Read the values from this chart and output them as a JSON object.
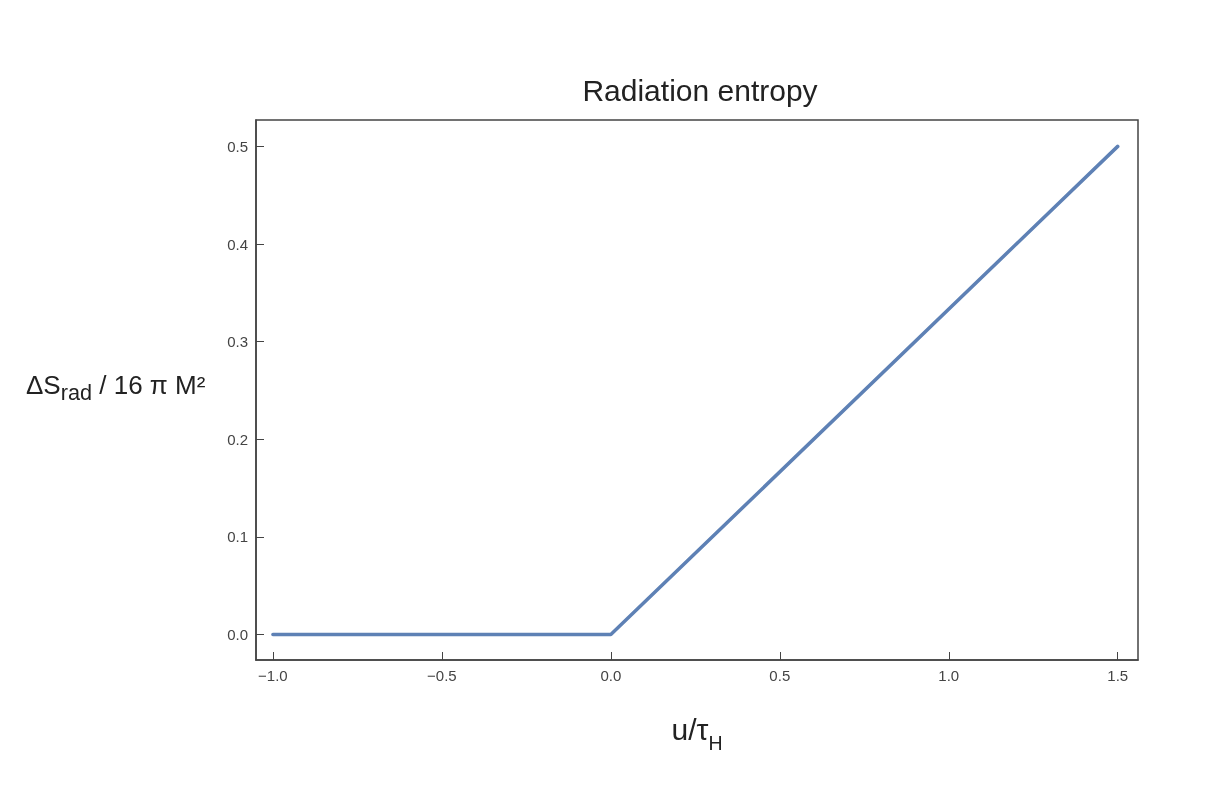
{
  "chart_data": {
    "type": "line",
    "title": "Radiation entropy",
    "xlabel": "u/τ$_{H}$",
    "ylabel": "ΔS$_{rad}$ / 16 π M²",
    "x": [
      -1,
      0,
      1.5
    ],
    "series": [
      {
        "color": "#5e81b5",
        "values": [
          0,
          0,
          0.5
        ]
      }
    ],
    "xlim": [
      -1.05,
      1.56
    ],
    "xticks": [
      {
        "value": -1,
        "label": "−1.0"
      },
      {
        "value": -0.5,
        "label": "−0.5"
      },
      {
        "value": 0,
        "label": "0.0"
      },
      {
        "value": 0.5,
        "label": "0.5"
      },
      {
        "value": 1,
        "label": "1.0"
      },
      {
        "value": 1.5,
        "label": "1.5"
      }
    ],
    "ylim": [
      -0.026,
      0.527
    ],
    "yticks": [
      {
        "value": 0,
        "label": "0.0"
      },
      {
        "value": 0.1,
        "label": "0.1"
      },
      {
        "value": 0.2,
        "label": "0.2"
      },
      {
        "value": 0.3,
        "label": "0.3"
      },
      {
        "value": 0.4,
        "label": "0.4"
      },
      {
        "value": 0.5,
        "label": "0.5"
      }
    ],
    "grid": false,
    "marker": "none",
    "line_style": "solid"
  }
}
